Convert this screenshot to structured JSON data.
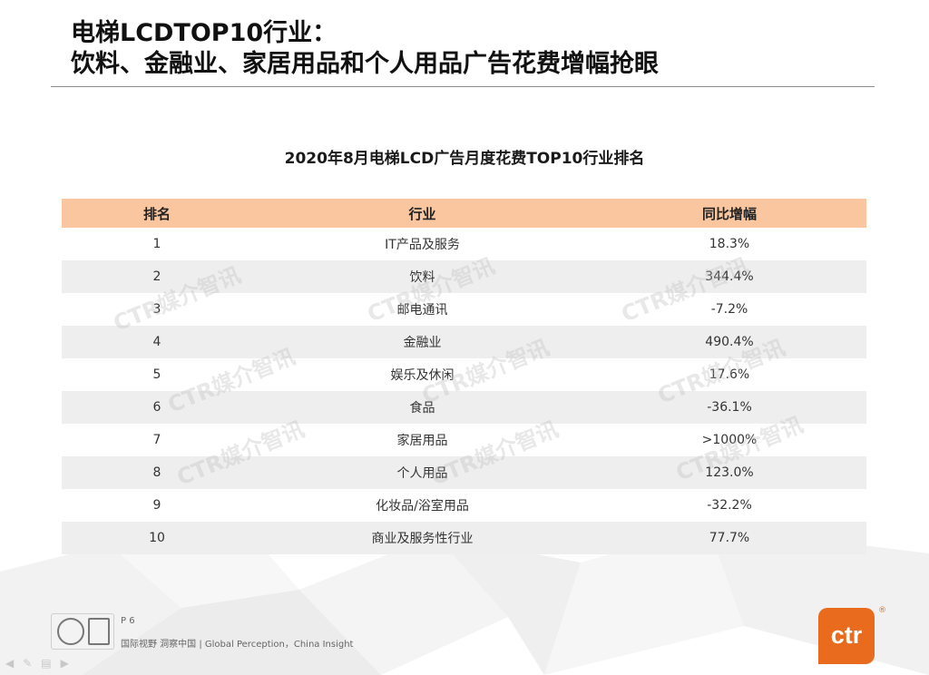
{
  "slide": {
    "title_line1": "电梯LCDTOP10行业：",
    "title_line2": "饮料、金融业、家居用品和个人用品广告花费增幅抢眼",
    "table_title": "2020年8月电梯LCD广告月度花费TOP10行业排名",
    "headers": {
      "rank": "排名",
      "industry": "行业",
      "yoy": "同比增幅"
    },
    "rows": [
      {
        "rank": "1",
        "industry": "IT产品及服务",
        "yoy": "18.3%"
      },
      {
        "rank": "2",
        "industry": "饮料",
        "yoy": "344.4%"
      },
      {
        "rank": "3",
        "industry": "邮电通讯",
        "yoy": "-7.2%"
      },
      {
        "rank": "4",
        "industry": "金融业",
        "yoy": "490.4%"
      },
      {
        "rank": "5",
        "industry": "娱乐及休闲",
        "yoy": "17.6%"
      },
      {
        "rank": "6",
        "industry": "食品",
        "yoy": "-36.1%"
      },
      {
        "rank": "7",
        "industry": "家居用品",
        "yoy": ">1000%"
      },
      {
        "rank": "8",
        "industry": "个人用品",
        "yoy": "123.0%"
      },
      {
        "rank": "9",
        "industry": "化妆品/浴室用品",
        "yoy": "-32.2%"
      },
      {
        "rank": "10",
        "industry": "商业及服务性行业",
        "yoy": "77.7%"
      }
    ],
    "watermark": "CTR媒介智讯"
  },
  "footer": {
    "page": "P 6",
    "slogan": "国际视野  洞察中国 |  Global Perception，China Insight",
    "logo_text": "ctr",
    "logo_reg": "®"
  },
  "colors": {
    "header_bg": "#f9c6a0",
    "stripe": "#eeeeee",
    "brand_orange": "#e96b1e"
  }
}
